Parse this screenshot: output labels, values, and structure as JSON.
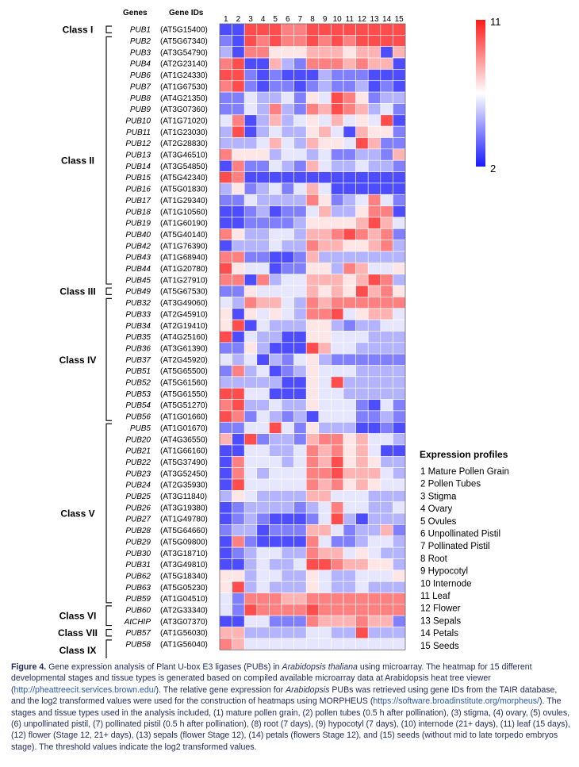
{
  "chart_data": {
    "type": "heatmap",
    "column_headers": {
      "genes": "Genes",
      "gene_ids": "Gene IDs"
    },
    "columns": [
      "1",
      "2",
      "3",
      "4",
      "5",
      "6",
      "7",
      "8",
      "9",
      "10",
      "11",
      "12",
      "13",
      "14",
      "15"
    ],
    "colorbar": {
      "max_label": "11",
      "min_label": "2",
      "max": 11,
      "min": 2,
      "colors": {
        "high": "#ff1a1a",
        "mid": "#ffffff",
        "low": "#1a1aff"
      }
    },
    "classes": [
      {
        "label": "Class I",
        "start": 0,
        "end": 0
      },
      {
        "label": "Class II",
        "start": 1,
        "end": 22
      },
      {
        "label": "Class III",
        "start": 23,
        "end": 23
      },
      {
        "label": "Class IV",
        "start": 24,
        "end": 34
      },
      {
        "label": "Class V",
        "start": 35,
        "end": 50
      },
      {
        "label": "Class VI",
        "start": 51,
        "end": 52
      },
      {
        "label": "Class VII",
        "start": 53,
        "end": 53
      },
      {
        "label": "Class IX",
        "start": 54,
        "end": 55
      }
    ],
    "rows": [
      {
        "gene": "PUB1",
        "id": "(AT5G15400)",
        "values": [
          3,
          3,
          10,
          10,
          10,
          9,
          9,
          10,
          10,
          10,
          10,
          10,
          10,
          10,
          10
        ]
      },
      {
        "gene": "PUB2",
        "id": "(AT5G67340)",
        "values": [
          4,
          3,
          10,
          9,
          10,
          9,
          9,
          10,
          9,
          10,
          9,
          10,
          10,
          10,
          10
        ]
      },
      {
        "gene": "PUB3",
        "id": "(AT3G54790)",
        "values": [
          5,
          3,
          9,
          9,
          7,
          7,
          7,
          8,
          8,
          8,
          7,
          8,
          8,
          3,
          8
        ]
      },
      {
        "gene": "PUB4",
        "id": "(AT2G23140)",
        "values": [
          9,
          10,
          3,
          3,
          8,
          5,
          4,
          9,
          9,
          9,
          8,
          9,
          8,
          8,
          3
        ]
      },
      {
        "gene": "PUB6",
        "id": "(AT1G24330)",
        "values": [
          10,
          10,
          4,
          3,
          4,
          3,
          3,
          3,
          5,
          4,
          4,
          4,
          3,
          3,
          3
        ]
      },
      {
        "gene": "PUB7",
        "id": "(AT1G67530)",
        "values": [
          9,
          10,
          4,
          3,
          4,
          4,
          3,
          4,
          5,
          4,
          4,
          5,
          3,
          4,
          3
        ]
      },
      {
        "gene": "PUB8",
        "id": "(AT4G21350)",
        "values": [
          4,
          4,
          6,
          5,
          5,
          6,
          4,
          7,
          6,
          10,
          9,
          7,
          4,
          5,
          5
        ]
      },
      {
        "gene": "PUB9",
        "id": "(AT3G07360)",
        "values": [
          4,
          4,
          6,
          5,
          9,
          5,
          4,
          9,
          8,
          10,
          9,
          8,
          5,
          6,
          4
        ]
      },
      {
        "gene": "PUB10",
        "id": "(AT1G71020)",
        "values": [
          6,
          9,
          3,
          5,
          8,
          5,
          6,
          7,
          6,
          8,
          6,
          7,
          6,
          10,
          3
        ]
      },
      {
        "gene": "PUB11",
        "id": "(AT1G23030)",
        "values": [
          5,
          10,
          3,
          5,
          6,
          5,
          5,
          7,
          8,
          6,
          3,
          8,
          7,
          7,
          4
        ]
      },
      {
        "gene": "PUB12",
        "id": "(AT2G28830)",
        "values": [
          5,
          5,
          5,
          6,
          8,
          6,
          5,
          8,
          7,
          7,
          6,
          10,
          8,
          4,
          4
        ]
      },
      {
        "gene": "PUB13",
        "id": "(AT3G46510)",
        "values": [
          9,
          7,
          7,
          7,
          5,
          6,
          6,
          5,
          6,
          4,
          4,
          5,
          5,
          4,
          8
        ]
      },
      {
        "gene": "PUB14",
        "id": "(AT3G54850)",
        "values": [
          3,
          9,
          4,
          4,
          6,
          5,
          4,
          8,
          6,
          5,
          5,
          6,
          5,
          5,
          4
        ]
      },
      {
        "gene": "PUB15",
        "id": "(AT5G42340)",
        "values": [
          10,
          9,
          3,
          3,
          3,
          3,
          3,
          3,
          3,
          3,
          3,
          3,
          3,
          3,
          3
        ]
      },
      {
        "gene": "PUB16",
        "id": "(AT5G01830)",
        "values": [
          5,
          7,
          4,
          5,
          6,
          4,
          6,
          8,
          6,
          3,
          3,
          3,
          3,
          3,
          3
        ]
      },
      {
        "gene": "PUB17",
        "id": "(AT1G29340)",
        "values": [
          4,
          4,
          6,
          5,
          5,
          5,
          5,
          9,
          7,
          4,
          5,
          6,
          9,
          6,
          4
        ]
      },
      {
        "gene": "PUB18",
        "id": "(AT1G10560)",
        "values": [
          3,
          3,
          4,
          5,
          3,
          4,
          4,
          6,
          8,
          5,
          5,
          7,
          9,
          9,
          3
        ]
      },
      {
        "gene": "PUB19",
        "id": "(AT1G60190)",
        "values": [
          3,
          3,
          4,
          4,
          4,
          4,
          5,
          7,
          7,
          7,
          7,
          8,
          10,
          8,
          6
        ]
      },
      {
        "gene": "PUB40",
        "id": "(AT5G40140)",
        "values": [
          9,
          7,
          5,
          5,
          6,
          6,
          5,
          8,
          8,
          9,
          10,
          9,
          8,
          9,
          4
        ]
      },
      {
        "gene": "PUB42",
        "id": "(AT1G76390)",
        "values": [
          3,
          5,
          5,
          5,
          6,
          5,
          5,
          9,
          8,
          8,
          7,
          7,
          8,
          9,
          5
        ]
      },
      {
        "gene": "PUB43",
        "id": "(AT1G68940)",
        "values": [
          9,
          9,
          4,
          4,
          3,
          3,
          4,
          8,
          5,
          5,
          5,
          5,
          5,
          5,
          5
        ]
      },
      {
        "gene": "PUB44",
        "id": "(AT1G20780)",
        "values": [
          10,
          7,
          6,
          6,
          3,
          4,
          4,
          7,
          7,
          5,
          9,
          8,
          6,
          6,
          7
        ]
      },
      {
        "gene": "PUB45",
        "id": "(AT1G27910)",
        "values": [
          9,
          9,
          3,
          9,
          5,
          6,
          6,
          8,
          8,
          8,
          7,
          8,
          10,
          9,
          5
        ]
      },
      {
        "gene": "PUB49",
        "id": "(AT5G67530)",
        "values": [
          4,
          4,
          7,
          6,
          6,
          6,
          6,
          8,
          7,
          8,
          7,
          10,
          8,
          9,
          7
        ]
      },
      {
        "gene": "PUB32",
        "id": "(AT3G49060)",
        "values": [
          6,
          5,
          9,
          8,
          8,
          6,
          5,
          9,
          8,
          9,
          9,
          9,
          9,
          9,
          9
        ]
      },
      {
        "gene": "PUB33",
        "id": "(AT2G45910)",
        "values": [
          7,
          3,
          7,
          6,
          7,
          6,
          5,
          9,
          9,
          10,
          6,
          7,
          8,
          8,
          6
        ]
      },
      {
        "gene": "PUB34",
        "id": "(AT2G19410)",
        "values": [
          7,
          10,
          3,
          6,
          5,
          5,
          5,
          7,
          7,
          5,
          4,
          5,
          5,
          6,
          6
        ]
      },
      {
        "gene": "PUB35",
        "id": "(AT4G25160)",
        "values": [
          10,
          3,
          6,
          5,
          5,
          3,
          3,
          7,
          7,
          6,
          6,
          6,
          5,
          5,
          5
        ]
      },
      {
        "gene": "PUB36",
        "id": "(AT3G61390)",
        "values": [
          4,
          4,
          7,
          5,
          3,
          3,
          3,
          10,
          8,
          6,
          6,
          5,
          5,
          5,
          5
        ]
      },
      {
        "gene": "PUB37",
        "id": "(AT2G45920)",
        "values": [
          6,
          5,
          6,
          3,
          5,
          4,
          6,
          7,
          5,
          4,
          4,
          4,
          4,
          4,
          4
        ]
      },
      {
        "gene": "PUB51",
        "id": "(AT5G65500)",
        "values": [
          4,
          9,
          5,
          6,
          3,
          4,
          5,
          7,
          6,
          6,
          6,
          5,
          5,
          5,
          5
        ]
      },
      {
        "gene": "PUB52",
        "id": "(AT5G61560)",
        "values": [
          5,
          5,
          5,
          5,
          5,
          3,
          3,
          7,
          6,
          10,
          5,
          5,
          5,
          5,
          5
        ]
      },
      {
        "gene": "PUB53",
        "id": "(AT5G61550)",
        "values": [
          10,
          10,
          6,
          6,
          3,
          3,
          3,
          7,
          6,
          6,
          5,
          5,
          5,
          5,
          5
        ]
      },
      {
        "gene": "PUB54",
        "id": "(AT5G51270)",
        "values": [
          9,
          10,
          5,
          5,
          6,
          5,
          5,
          7,
          6,
          6,
          6,
          4,
          3,
          6,
          4
        ]
      },
      {
        "gene": "PUB56",
        "id": "(AT1G01660)",
        "values": [
          10,
          9,
          4,
          6,
          5,
          4,
          5,
          3,
          6,
          6,
          6,
          4,
          4,
          5,
          4
        ]
      },
      {
        "gene": "PUB5",
        "id": "(AT1G01670)",
        "values": [
          4,
          4,
          6,
          6,
          10,
          6,
          4,
          7,
          5,
          5,
          5,
          3,
          3,
          4,
          3
        ]
      },
      {
        "gene": "PUB20",
        "id": "(AT4G36550)",
        "values": [
          8,
          3,
          10,
          4,
          5,
          5,
          4,
          8,
          9,
          9,
          7,
          8,
          6,
          6,
          5
        ]
      },
      {
        "gene": "PUB21",
        "id": "(AT1G66160)",
        "values": [
          3,
          3,
          6,
          6,
          5,
          5,
          6,
          9,
          8,
          9,
          7,
          8,
          6,
          3,
          3
        ]
      },
      {
        "gene": "PUB22",
        "id": "(AT5G37490)",
        "values": [
          3,
          9,
          6,
          6,
          6,
          5,
          6,
          9,
          8,
          10,
          7,
          8,
          7,
          5,
          5
        ]
      },
      {
        "gene": "PUB23",
        "id": "(AT3G52450)",
        "values": [
          3,
          9,
          6,
          5,
          6,
          6,
          6,
          9,
          9,
          10,
          8,
          8,
          8,
          6,
          5
        ]
      },
      {
        "gene": "PUB24",
        "id": "(AT2G35930)",
        "values": [
          3,
          10,
          6,
          6,
          6,
          6,
          6,
          9,
          8,
          9,
          7,
          8,
          7,
          6,
          6
        ]
      },
      {
        "gene": "PUB25",
        "id": "(AT3G11840)",
        "values": [
          5,
          7,
          6,
          5,
          5,
          5,
          5,
          8,
          8,
          6,
          6,
          6,
          5,
          5,
          5
        ]
      },
      {
        "gene": "PUB26",
        "id": "(AT3G19380)",
        "values": [
          3,
          4,
          5,
          5,
          5,
          5,
          4,
          5,
          6,
          9,
          6,
          6,
          5,
          5,
          6
        ]
      },
      {
        "gene": "PUB27",
        "id": "(AT1G49780)",
        "values": [
          3,
          4,
          5,
          4,
          3,
          3,
          3,
          4,
          6,
          10,
          5,
          3,
          5,
          5,
          5
        ]
      },
      {
        "gene": "PUB28",
        "id": "(AT5G64660)",
        "values": [
          4,
          5,
          5,
          3,
          4,
          4,
          4,
          8,
          8,
          6,
          4,
          5,
          5,
          8,
          4
        ]
      },
      {
        "gene": "PUB29",
        "id": "(AT5G09800)",
        "values": [
          3,
          9,
          4,
          3,
          3,
          3,
          3,
          9,
          6,
          4,
          4,
          5,
          6,
          6,
          5
        ]
      },
      {
        "gene": "PUB30",
        "id": "(AT3G18710)",
        "values": [
          3,
          4,
          5,
          6,
          6,
          5,
          5,
          9,
          8,
          8,
          6,
          7,
          6,
          5,
          5
        ]
      },
      {
        "gene": "PUB31",
        "id": "(AT3G49810)",
        "values": [
          3,
          3,
          5,
          6,
          5,
          5,
          6,
          10,
          10,
          9,
          8,
          8,
          7,
          7,
          5
        ]
      },
      {
        "gene": "PUB62",
        "id": "(AT5G18340)",
        "values": [
          7,
          7,
          5,
          6,
          6,
          5,
          5,
          7,
          6,
          5,
          5,
          6,
          6,
          6,
          7
        ]
      },
      {
        "gene": "PUB63",
        "id": "(AT5G05230)",
        "values": [
          7,
          10,
          5,
          6,
          5,
          5,
          5,
          7,
          6,
          5,
          5,
          6,
          5,
          5,
          5
        ]
      },
      {
        "gene": "PUB59",
        "id": "(AT1G04510)",
        "values": [
          6,
          4,
          9,
          9,
          9,
          8,
          8,
          9,
          9,
          9,
          9,
          9,
          9,
          9,
          9
        ]
      },
      {
        "gene": "PUB60",
        "id": "(AT2G33340)",
        "values": [
          6,
          4,
          10,
          9,
          9,
          9,
          9,
          10,
          9,
          9,
          9,
          9,
          9,
          9,
          9
        ]
      },
      {
        "gene": "AtCHIP",
        "id": "(AT3G07370)",
        "values": [
          3,
          3,
          6,
          6,
          4,
          4,
          4,
          9,
          8,
          8,
          8,
          9,
          8,
          8,
          4
        ]
      },
      {
        "gene": "PUB57",
        "id": "(AT1G56030)",
        "values": [
          8,
          8,
          5,
          5,
          5,
          5,
          5,
          6,
          6,
          5,
          5,
          10,
          5,
          5,
          5
        ]
      },
      {
        "gene": "PUB58",
        "id": "(AT1G56040)",
        "values": [
          9,
          8,
          6,
          6,
          6,
          6,
          6,
          6,
          6,
          6,
          6,
          6,
          6,
          6,
          6
        ]
      }
    ],
    "legend": {
      "title": "Expression profiles",
      "items": [
        "1  Mature Pollen Grain",
        "2  Pollen Tubes",
        "3  Stigma",
        "4  Ovary",
        "5  Ovules",
        "6  Unpollinated Pistil",
        "7  Pollinated Pistil",
        "8  Root",
        "9  Hypocotyl",
        "10 Internode",
        "11 Leaf",
        "12 Flower",
        "13 Sepals",
        "14 Petals",
        "15 Seeds"
      ]
    }
  },
  "caption": {
    "figure_label": "Figure 4.",
    "text_1": " Gene expression analysis of Plant U-box E3 ligases (PUBs) in ",
    "species": "Arabidopsis thaliana",
    "text_2": " using microarray. The heatmap for 15 different developmental stages and tissue types is generated based on compiled available microarray data at Arabidopsis heat tree viewer (",
    "link_1": "http://pheattreecit.services.brown.edu/",
    "text_3": "). The relative gene expression for ",
    "genus": "Arabidopsis",
    "text_4": " PUBs was retrieved using gene IDs from the TAIR database, and the log2 transformed values were used for the construction of heatmaps using MORPHEUS (",
    "link_2": "https://software.broadinstitute.org/morpheus/",
    "text_5": "). The stages and tissue types used in the analysis included, (1) mature pollen grain, (2) pollen tubes (0.5 h after pollination), (3) stigma, (4) ovary, (5) ovules, (6) unpollinated pistil, (7) pollinated pistil (0.5 h after pollination), (8) root (7 days), (9) hypocotyl (7 days), (10) internode (21+ days), (11) leaf (15 days), (12) flower (Stage 12, 21+ days), (13) sepals (flower Stage 12), (14) petals (flowers Stage 12), and (15) seeds (without mid to late torpedo embryos stage). The threshold values indicate the log2 transformed values."
  }
}
